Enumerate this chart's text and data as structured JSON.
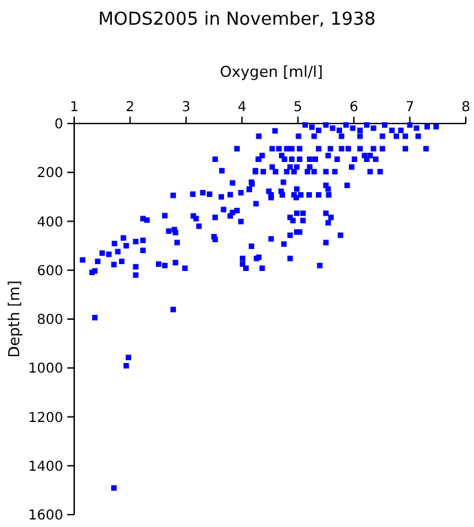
{
  "chart_data": {
    "type": "scatter",
    "title": "MODS2005 in November, 1938",
    "xlabel": "Oxygen [ml/l]",
    "ylabel": "Depth [m]",
    "xlim": [
      1,
      8
    ],
    "xticks": [
      1,
      2,
      3,
      4,
      5,
      6,
      7,
      8
    ],
    "ylim": [
      1600,
      0
    ],
    "yticks": [
      0,
      200,
      400,
      600,
      800,
      1000,
      1200,
      1400,
      1600
    ],
    "marker": "square",
    "grid": false,
    "series": [
      {
        "color": "#0000ff",
        "x": [
          4.3,
          3.91,
          3.52,
          3.64,
          4.29,
          4.24,
          3.83,
          4.18,
          2.77,
          3.12,
          3.3,
          3.42,
          3.63,
          3.79,
          3.98,
          4.13,
          4.25,
          3.67,
          3.83,
          3.91,
          3.79,
          3.98,
          3.52,
          3.13,
          3.18,
          3.23,
          2.62,
          2.23,
          2.3,
          2.69,
          2.79,
          2.81,
          2.84,
          3.5,
          3.52,
          4.17,
          1.88,
          1.72,
          1.93,
          2.1,
          2.23,
          2.23,
          1.78,
          1.5,
          1.62,
          1.71,
          1.85,
          1.42,
          1.15,
          1.32,
          1.37,
          2.1,
          2.1,
          2.51,
          2.62,
          2.81,
          2.98,
          4.01,
          4.01,
          4.07,
          4.26,
          4.3,
          2.77,
          1.37,
          1.97,
          1.93,
          1.71,
          5.13,
          5.25,
          5.37,
          5.5,
          5.62,
          5.74,
          5.86,
          5.98,
          6.11,
          6.23,
          6.35,
          6.55,
          6.68,
          6.84,
          7.0,
          7.12,
          7.31,
          7.47,
          4.59,
          5.01,
          5.29,
          5.78,
          6.11,
          6.51,
          6.76,
          6.92,
          7.15,
          4.54,
          4.66,
          4.8,
          4.89,
          5.03,
          5.37,
          5.58,
          5.78,
          5.9,
          6.11,
          6.35,
          6.51,
          6.92,
          7.29,
          4.36,
          4.71,
          5.54,
          6.19,
          6.29,
          4.3,
          4.76,
          4.89,
          5.03,
          5.21,
          5.31,
          5.7,
          6.01,
          6.23,
          6.39,
          4.54,
          4.86,
          4.98,
          5.21,
          5.96,
          4.24,
          4.38,
          4.6,
          4.8,
          4.93,
          5.17,
          5.29,
          5.5,
          5.66,
          6.29,
          6.47,
          4.17,
          4.74,
          5.5,
          5.88,
          4.13,
          4.98,
          5.54,
          4.48,
          4.7,
          4.52,
          4.72,
          4.93,
          5.05,
          5.2,
          5.37,
          5.55,
          4.97,
          4.52,
          4.98,
          5.09,
          5.5,
          4.86,
          5.59,
          4.91,
          5.09,
          5.54,
          4.98,
          5.03,
          4.86,
          5.76,
          4.52,
          5.5,
          4.75,
          4.86,
          5.39,
          4.36
        ],
        "values": [
          52,
          103,
          146,
          193,
          146,
          193,
          243,
          247,
          294,
          289,
          283,
          289,
          300,
          291,
          283,
          270,
          328,
          352,
          364,
          356,
          378,
          401,
          384,
          378,
          389,
          420,
          377,
          389,
          395,
          440,
          434,
          446,
          487,
          463,
          474,
          502,
          468,
          491,
          500,
          483,
          478,
          519,
          524,
          530,
          535,
          577,
          564,
          564,
          558,
          609,
          603,
          586,
          620,
          575,
          581,
          569,
          592,
          552,
          575,
          592,
          552,
          547,
          761,
          794,
          957,
          991,
          1491,
          6,
          15,
          28,
          6,
          19,
          28,
          6,
          19,
          28,
          6,
          19,
          6,
          28,
          28,
          6,
          19,
          13,
          13,
          30,
          52,
          52,
          52,
          52,
          52,
          52,
          52,
          52,
          103,
          103,
          103,
          103,
          103,
          103,
          103,
          103,
          103,
          103,
          103,
          103,
          103,
          103,
          131,
          131,
          131,
          131,
          131,
          146,
          146,
          146,
          146,
          146,
          146,
          146,
          146,
          146,
          146,
          178,
          178,
          178,
          178,
          178,
          197,
          197,
          197,
          197,
          197,
          197,
          197,
          197,
          197,
          197,
          197,
          240,
          240,
          253,
          253,
          268,
          268,
          268,
          277,
          277,
          292,
          292,
          292,
          292,
          292,
          292,
          292,
          303,
          303,
          367,
          367,
          367,
          384,
          384,
          397,
          397,
          406,
          444,
          444,
          457,
          457,
          472,
          487,
          493,
          552,
          581,
          592
        ]
      }
    ]
  }
}
